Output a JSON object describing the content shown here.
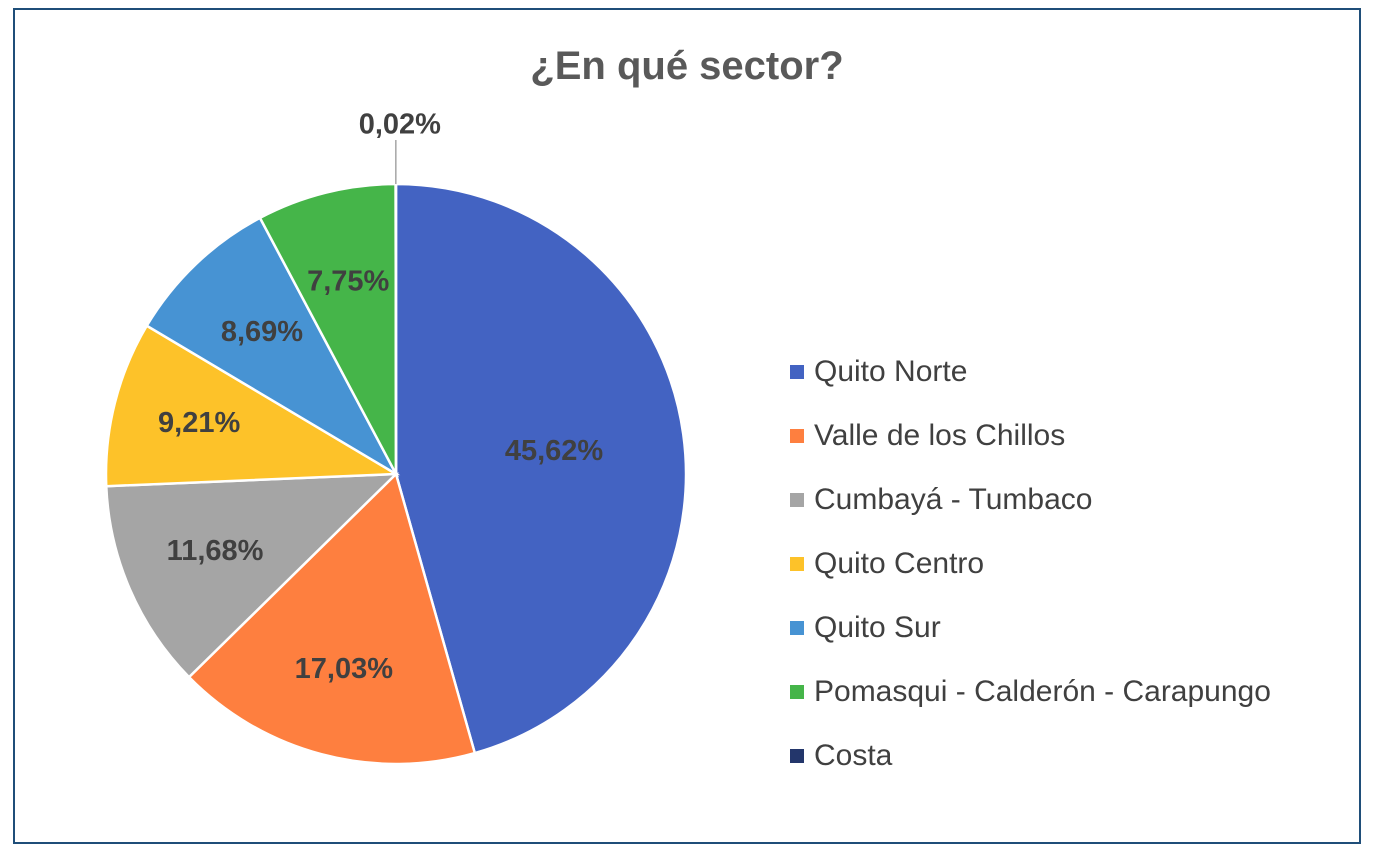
{
  "chart_data": {
    "type": "pie",
    "title": "¿En qué sector?",
    "legend_position": "right",
    "categories": [
      "Quito Norte",
      "Valle de los Chillos",
      "Cumbayá - Tumbaco",
      "Quito Centro",
      "Quito Sur",
      "Pomasqui - Calderón - Carapungo",
      "Costa"
    ],
    "values": [
      45.62,
      17.03,
      11.68,
      9.21,
      8.69,
      7.75,
      0.02
    ],
    "data_labels": [
      "45,62%",
      "17,03%",
      "11,68%",
      "9,21%",
      "8,69%",
      "7,75%",
      "0,02%"
    ],
    "colors": [
      "#4363c2",
      "#fe7f3f",
      "#a5a5a5",
      "#fdc229",
      "#4793d3",
      "#45b549",
      "#23366b"
    ]
  }
}
